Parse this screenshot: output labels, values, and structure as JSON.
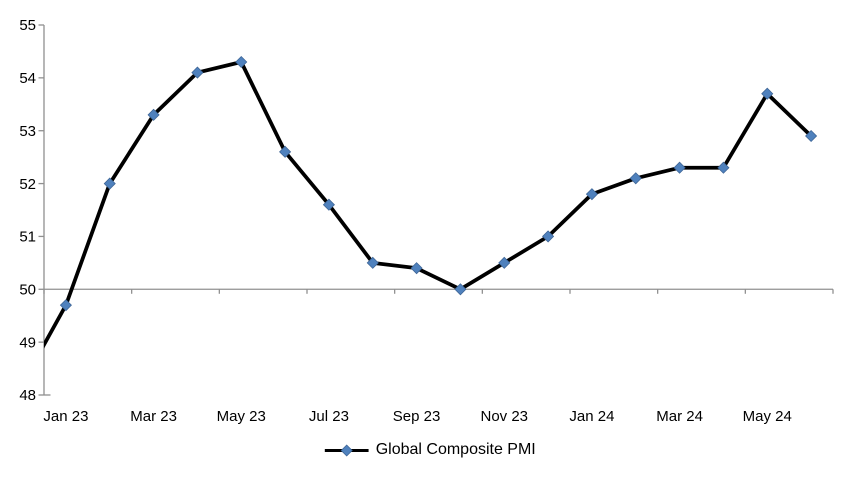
{
  "chart_data": {
    "type": "line",
    "title": "",
    "legend_label": "Global Composite PMI",
    "legend_position": "bottom-center",
    "categories": [
      "Dec 22",
      "Jan 23",
      "Feb 23",
      "Mar 23",
      "Apr 23",
      "May 23",
      "Jun 23",
      "Jul 23",
      "Aug 23",
      "Sep 23",
      "Oct 23",
      "Nov 23",
      "Dec 23",
      "Jan 24",
      "Feb 24",
      "Mar 24",
      "Apr 24",
      "May 24",
      "Jun 24"
    ],
    "values": [
      48.2,
      49.7,
      52.0,
      53.3,
      54.1,
      54.3,
      52.6,
      51.6,
      50.5,
      50.4,
      50.0,
      50.5,
      51.0,
      51.8,
      52.1,
      52.3,
      52.3,
      53.7,
      52.9
    ],
    "first_point_clipped_at_left_edge": true,
    "x_tick_labels": [
      "Jan 23",
      "Mar 23",
      "May 23",
      "Jul 23",
      "Sep 23",
      "Nov 23",
      "Jan 24",
      "Mar 24",
      "May 24"
    ],
    "y_ticks": [
      48,
      49,
      50,
      51,
      52,
      53,
      54,
      55
    ],
    "ylim": [
      48,
      55
    ],
    "x_axis_crosses_at_y": 50,
    "grid": "off",
    "marker_shape": "diamond",
    "colors": {
      "series_line": "#000000",
      "marker": "#4F81BD",
      "marker_border": "#3D6494",
      "axis": "#909090",
      "label_text": "#000000",
      "background": "#FFFFFF"
    }
  }
}
